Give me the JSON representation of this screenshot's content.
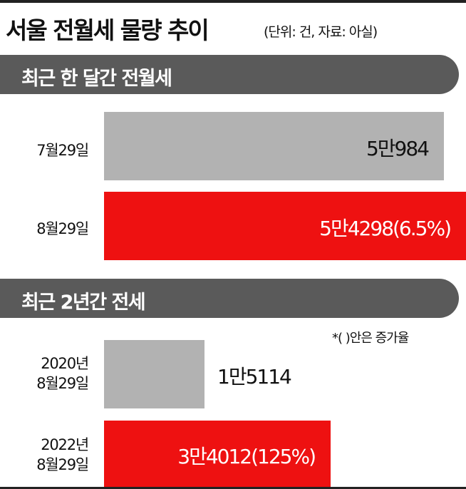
{
  "title": "서울 전월세 물량 추이",
  "title_note": "(단위: 건, 자료: 아실)",
  "colors": {
    "gray_bar": "#b2b2b2",
    "red_bar": "#ee1111",
    "section_bg": "#5a5a5a"
  },
  "chart_data": [
    {
      "type": "bar",
      "title": "최근 한 달간 전월세",
      "categories": [
        "7월29일",
        "8월29일"
      ],
      "values": [
        50984,
        54298
      ],
      "data_labels": [
        "5만984",
        "5만4298(6.5%)"
      ],
      "xlim": [
        0,
        54298
      ]
    },
    {
      "type": "bar",
      "title": "최근 2년간 전세",
      "categories": [
        [
          "2020년",
          "8월29일"
        ],
        [
          "2022년",
          "8월29일"
        ]
      ],
      "values": [
        15114,
        34012
      ],
      "data_labels": [
        "1만5114",
        "3만4012(125%)"
      ],
      "xlim": [
        0,
        54298
      ],
      "annotation": "*(    )안은 증가율"
    }
  ]
}
